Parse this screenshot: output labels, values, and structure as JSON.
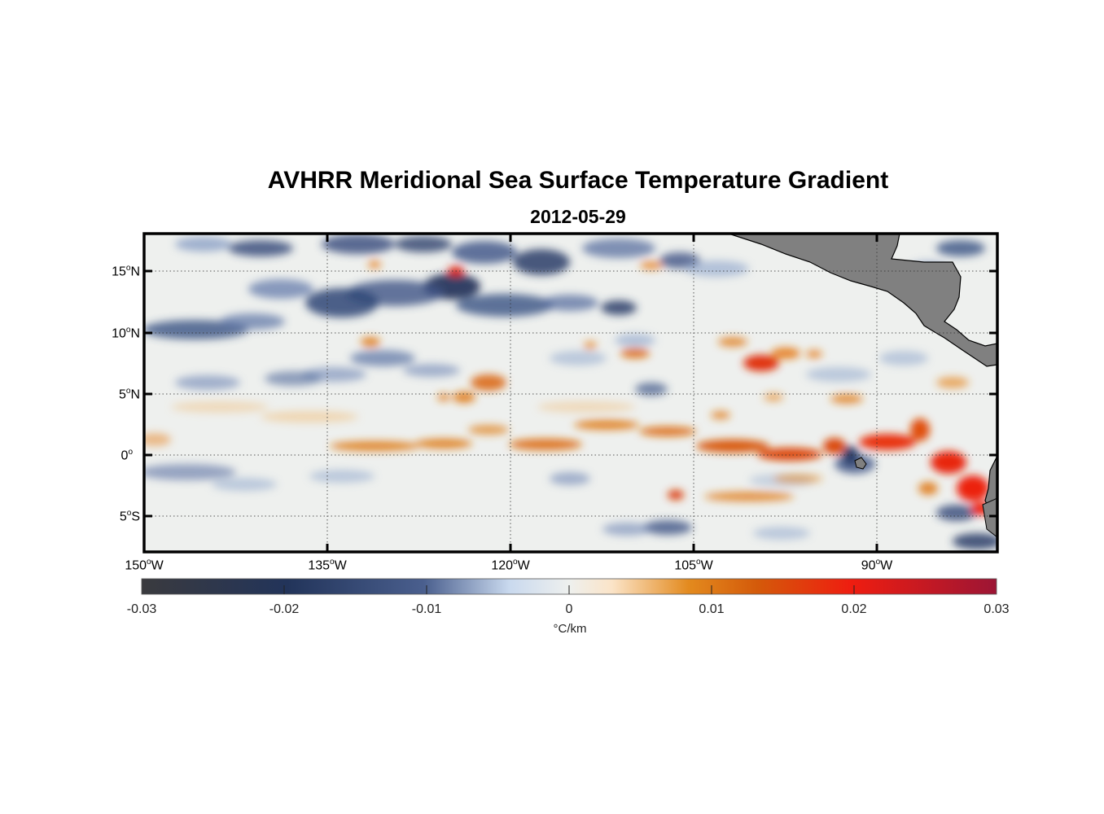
{
  "title": "AVHRR Meridional Sea Surface Temperature Gradient",
  "subtitle": "2012-05-29",
  "y_ticks": [
    {
      "deg": "15",
      "hemi": "N",
      "lat": 15
    },
    {
      "deg": "10",
      "hemi": "N",
      "lat": 10
    },
    {
      "deg": "5",
      "hemi": "N",
      "lat": 5
    },
    {
      "deg": "0",
      "hemi": "",
      "lat": 0
    },
    {
      "deg": "5",
      "hemi": "S",
      "lat": -5
    }
  ],
  "x_ticks": [
    {
      "deg": "150",
      "hemi": "W",
      "lon": -150
    },
    {
      "deg": "135",
      "hemi": "W",
      "lon": -135
    },
    {
      "deg": "120",
      "hemi": "W",
      "lon": -120
    },
    {
      "deg": "105",
      "hemi": "W",
      "lon": -105
    },
    {
      "deg": "90",
      "hemi": "W",
      "lon": -90
    }
  ],
  "map_extent": {
    "lon": [
      -150,
      -80
    ],
    "lat": [
      -8,
      18
    ]
  },
  "colorbar": {
    "ticks": [
      "-0.03",
      "-0.02",
      "-0.01",
      "0",
      "0.01",
      "0.02",
      "0.03"
    ],
    "range": [
      -0.03,
      0.03
    ],
    "unit": "°C/km",
    "colors": [
      "#3a3a3e",
      "#22345a",
      "#4a5f8e",
      "#c9d9ee",
      "#eef0ee",
      "#fbe4c8",
      "#e38a1e",
      "#d45a0a",
      "#ef1d10",
      "#9c1535"
    ]
  },
  "land_color": "#808080",
  "grid": "dotted"
}
